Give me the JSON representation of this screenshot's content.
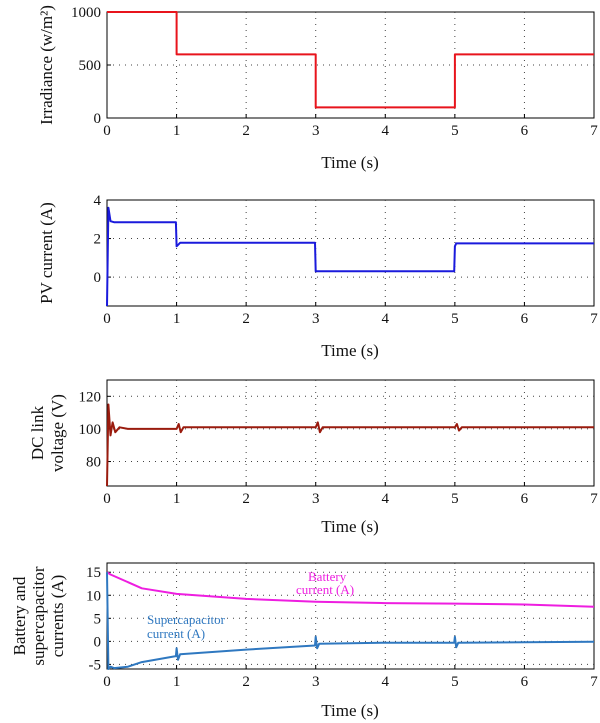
{
  "chart_data": [
    {
      "type": "line",
      "xlabel": "Time (s)",
      "ylabel": "Irradiance (w/m²)",
      "xlim": [
        0,
        7
      ],
      "ylim": [
        0,
        1000
      ],
      "x_ticks": [
        0,
        1,
        2,
        3,
        4,
        5,
        6,
        7
      ],
      "y_ticks": [
        0,
        500,
        1000
      ],
      "grid": true,
      "series": [
        {
          "color": "#e8141c",
          "x": [
            0,
            1,
            1,
            3,
            3,
            5,
            5,
            7
          ],
          "y": [
            1000,
            1000,
            600,
            600,
            100,
            100,
            600,
            600
          ]
        }
      ]
    },
    {
      "type": "line",
      "xlabel": "Time (s)",
      "ylabel": "PV current (A)",
      "xlim": [
        0,
        7
      ],
      "ylim": [
        -1.5,
        4
      ],
      "x_ticks": [
        0,
        1,
        2,
        3,
        4,
        5,
        6,
        7
      ],
      "y_ticks": [
        0,
        2,
        4
      ],
      "grid": true,
      "series": [
        {
          "color": "#1a1adc",
          "x": [
            0,
            0.02,
            0.05,
            0.1,
            0.3,
            0.99,
            1.0,
            1.05,
            2.99,
            3.0,
            3.02,
            4.99,
            5.0,
            5.02,
            7
          ],
          "y": [
            -1.5,
            3.6,
            2.9,
            2.85,
            2.85,
            2.85,
            1.6,
            1.78,
            1.78,
            0.3,
            0.3,
            0.3,
            1.6,
            1.75,
            1.75
          ]
        }
      ]
    },
    {
      "type": "line",
      "xlabel": "Time (s)",
      "ylabel": "DC link voltage (V)",
      "xlim": [
        0,
        7
      ],
      "ylim": [
        65,
        130
      ],
      "x_ticks": [
        0,
        1,
        2,
        3,
        4,
        5,
        6,
        7
      ],
      "y_ticks": [
        80,
        100,
        120
      ],
      "grid": true,
      "series": [
        {
          "color": "#9a1b0e",
          "x": [
            0,
            0.02,
            0.05,
            0.08,
            0.12,
            0.18,
            0.3,
            1.0,
            1.03,
            1.06,
            1.1,
            3.0,
            3.03,
            3.06,
            3.1,
            5.0,
            5.03,
            5.06,
            5.1,
            7
          ],
          "y": [
            65,
            115,
            96,
            104,
            98,
            101,
            100,
            100,
            103,
            98,
            101,
            101,
            104,
            98,
            101,
            101,
            103,
            99,
            101,
            101
          ]
        }
      ]
    },
    {
      "type": "line",
      "xlabel": "Time (s)",
      "ylabel": "Battery and supercapacitor currents (A)",
      "xlim": [
        0,
        7
      ],
      "ylim": [
        -6,
        17
      ],
      "x_ticks": [
        0,
        1,
        2,
        3,
        4,
        5,
        6,
        7
      ],
      "y_ticks": [
        -5,
        0,
        5,
        10,
        15
      ],
      "grid": true,
      "annotations": {
        "battery": "Battery current (A)",
        "supercapacitor": "Supercapacitor current (A)"
      },
      "series": [
        {
          "color": "#ee1ee0",
          "x": [
            0,
            0.05,
            0.5,
            1,
            2,
            3,
            4,
            5,
            6,
            7
          ],
          "y": [
            15,
            14.5,
            11.5,
            10.3,
            9.2,
            8.6,
            8.3,
            8.2,
            8.0,
            7.5
          ]
        },
        {
          "color": "#2f78c0",
          "x": [
            0,
            0.02,
            0.05,
            0.1,
            0.3,
            0.5,
            0.99,
            1.0,
            1.02,
            1.05,
            2,
            2.99,
            3.0,
            3.02,
            3.05,
            4,
            4.99,
            5.0,
            5.02,
            5.05,
            6,
            7
          ],
          "y": [
            15,
            -6,
            -5.5,
            -5.8,
            -5.5,
            -4.5,
            -3.2,
            -1.5,
            -4.0,
            -2.8,
            -1.8,
            -0.9,
            1.0,
            -1.5,
            -0.5,
            -0.3,
            -0.3,
            1.0,
            -1.3,
            -0.3,
            -0.2,
            -0.1
          ]
        }
      ]
    }
  ]
}
